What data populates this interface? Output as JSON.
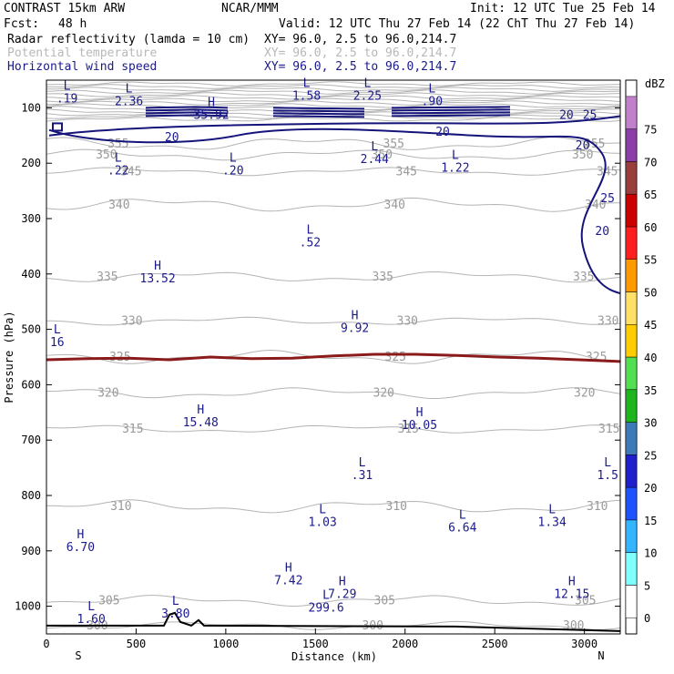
{
  "header": {
    "model": "CONTRAST 15km ARW",
    "center": "NCAR/MMM",
    "init": "Init: 12 UTC Tue 25 Feb 14",
    "fcst_label": "Fcst:",
    "fcst_value": "48 h",
    "valid": "Valid: 12 UTC Thu 27 Feb 14 (22 ChT Thu 27 Feb 14)",
    "fields": [
      {
        "name": "Radar reflectivity (lamda = 10 cm)",
        "xy": "XY=  96.0,  2.5 to  96.0,214.7",
        "color": "#000000"
      },
      {
        "name": "Potential temperature",
        "xy": "XY=  96.0,  2.5 to  96.0,214.7",
        "color": "#b0b0b0"
      },
      {
        "name": "Horizontal wind speed",
        "xy": "XY=  96.0,  2.5 to  96.0,214.7",
        "color": "#1a1a8c"
      }
    ]
  },
  "chart_data": {
    "type": "cross-section",
    "xlabel": "Distance (km)",
    "ylabel": "Pressure (hPa)",
    "xlim": [
      0,
      3200
    ],
    "ylim": [
      1050,
      50
    ],
    "x_ticks": [
      0,
      500,
      1000,
      1500,
      2000,
      2500,
      3000
    ],
    "y_ticks": [
      100,
      200,
      300,
      400,
      500,
      600,
      700,
      800,
      900,
      1000
    ],
    "x_end_labels": {
      "left": "S",
      "right": "N"
    },
    "colorbar": {
      "title": "dBZ",
      "levels": [
        "0",
        "5",
        "10",
        "15",
        "20",
        "25",
        "30",
        "35",
        "40",
        "45",
        "50",
        "55",
        "60",
        "65",
        "70",
        "75"
      ],
      "colors": [
        "#ffffff",
        "#80ffff",
        "#33b5ff",
        "#1f52ff",
        "#1f1fcc",
        "#3d7ab8",
        "#1fb51f",
        "#52e052",
        "#ffcc00",
        "#ffe066",
        "#ff9900",
        "#ff1f1f",
        "#cc0000",
        "#993d3d",
        "#8b3da8",
        "#c080cc"
      ]
    },
    "theta_levels": [
      {
        "label": "300",
        "p": 1035
      },
      {
        "label": "305",
        "p": 990
      },
      {
        "label": "310",
        "p": 820
      },
      {
        "label": "315",
        "p": 680
      },
      {
        "label": "320",
        "p": 615
      },
      {
        "label": "325",
        "p": 550
      },
      {
        "label": "330",
        "p": 485
      },
      {
        "label": "335",
        "p": 405
      },
      {
        "label": "340",
        "p": 275
      },
      {
        "label": "345",
        "p": 215
      },
      {
        "label": "350",
        "p": 185
      },
      {
        "label": "355",
        "p": 165
      }
    ],
    "freezing_level_p": [
      555,
      553,
      552,
      555,
      550,
      553,
      552,
      548,
      545,
      545,
      547,
      550,
      552,
      555,
      558
    ],
    "extrema": [
      {
        "type": "L",
        "value": ".19",
        "x": 115,
        "p": 90
      },
      {
        "type": "L",
        "value": "2.36",
        "x": 460,
        "p": 95
      },
      {
        "type": "H",
        "value": "35.92",
        "x": 920,
        "p": 120
      },
      {
        "type": "L",
        "value": "1.58",
        "x": 1450,
        "p": 85
      },
      {
        "type": "L",
        "value": "2.25",
        "x": 1790,
        "p": 85
      },
      {
        "type": "L",
        "value": ".90",
        "x": 2150,
        "p": 95
      },
      {
        "type": "L",
        "value": ".22",
        "x": 400,
        "p": 220
      },
      {
        "type": "L",
        "value": ".20",
        "x": 1040,
        "p": 220
      },
      {
        "type": "L",
        "value": "2.44",
        "x": 1830,
        "p": 200
      },
      {
        "type": "L",
        "value": "1.22",
        "x": 2280,
        "p": 215
      },
      {
        "type": "L",
        "value": ".52",
        "x": 1470,
        "p": 350
      },
      {
        "type": "H",
        "value": "13.52",
        "x": 620,
        "p": 415
      },
      {
        "type": "H",
        "value": "9.92",
        "x": 1720,
        "p": 505
      },
      {
        "type": "L",
        "value": "16",
        "x": 60,
        "p": 530
      },
      {
        "type": "H",
        "value": "15.48",
        "x": 860,
        "p": 675
      },
      {
        "type": "H",
        "value": "10.05",
        "x": 2080,
        "p": 680
      },
      {
        "type": "L",
        "value": ".31",
        "x": 1760,
        "p": 770
      },
      {
        "type": "L",
        "value": "1.5",
        "x": 3130,
        "p": 770
      },
      {
        "type": "L",
        "value": "1.03",
        "x": 1540,
        "p": 855
      },
      {
        "type": "L",
        "value": "6.64",
        "x": 2320,
        "p": 865
      },
      {
        "type": "L",
        "value": "1.34",
        "x": 2820,
        "p": 855
      },
      {
        "type": "H",
        "value": "6.70",
        "x": 190,
        "p": 900
      },
      {
        "type": "H",
        "value": "7.42",
        "x": 1350,
        "p": 960
      },
      {
        "type": "H",
        "value": "7.29",
        "x": 1650,
        "p": 985
      },
      {
        "type": "H",
        "value": "12.15",
        "x": 2930,
        "p": 985
      },
      {
        "type": "L",
        "value": "1.60",
        "x": 250,
        "p": 1030
      },
      {
        "type": "L",
        "value": "3.80",
        "x": 720,
        "p": 1020
      },
      {
        "type": "L",
        "value": "299.6",
        "x": 1560,
        "p": 1010
      }
    ],
    "wind_labels": [
      {
        "value": "20",
        "x": 660,
        "p": 160
      },
      {
        "value": "20",
        "x": 2170,
        "p": 150
      },
      {
        "value": "20",
        "x": 2860,
        "p": 120
      },
      {
        "value": "25",
        "x": 2990,
        "p": 120
      },
      {
        "value": "20",
        "x": 2950,
        "p": 175
      },
      {
        "value": "25",
        "x": 3090,
        "p": 270
      },
      {
        "value": "20",
        "x": 3060,
        "p": 330
      }
    ]
  }
}
